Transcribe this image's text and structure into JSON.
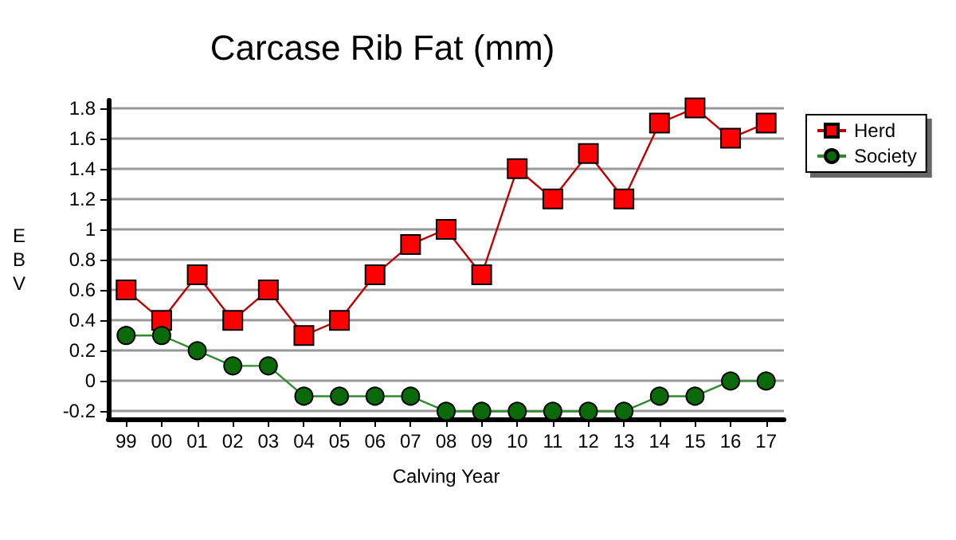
{
  "chart_data": {
    "type": "line",
    "title": "Carcase Rib Fat (mm)",
    "xlabel": "Calving Year",
    "ylabel": "EBV",
    "categories": [
      "99",
      "00",
      "01",
      "02",
      "03",
      "04",
      "05",
      "06",
      "07",
      "08",
      "09",
      "10",
      "11",
      "12",
      "13",
      "14",
      "15",
      "16",
      "17"
    ],
    "series": [
      {
        "name": "Herd",
        "color": "#ff0000",
        "marker": "square",
        "values": [
          0.6,
          0.4,
          0.7,
          0.4,
          0.6,
          0.3,
          0.4,
          0.7,
          0.9,
          1.0,
          0.7,
          1.4,
          1.2,
          1.5,
          1.2,
          1.7,
          1.8,
          1.6,
          1.7
        ]
      },
      {
        "name": "Society",
        "color": "#0a6a0a",
        "marker": "circle",
        "values": [
          0.3,
          0.3,
          0.2,
          0.1,
          0.1,
          -0.1,
          -0.1,
          -0.1,
          -0.1,
          -0.2,
          -0.2,
          -0.2,
          -0.2,
          -0.2,
          -0.2,
          -0.1,
          -0.1,
          0,
          0
        ]
      }
    ],
    "ylim": [
      -0.25,
      1.85
    ],
    "yticks": [
      -0.2,
      0,
      0.2,
      0.4,
      0.6,
      0.8,
      1,
      1.2,
      1.4,
      1.6,
      1.8
    ],
    "grid": "y",
    "legend": "top right"
  }
}
